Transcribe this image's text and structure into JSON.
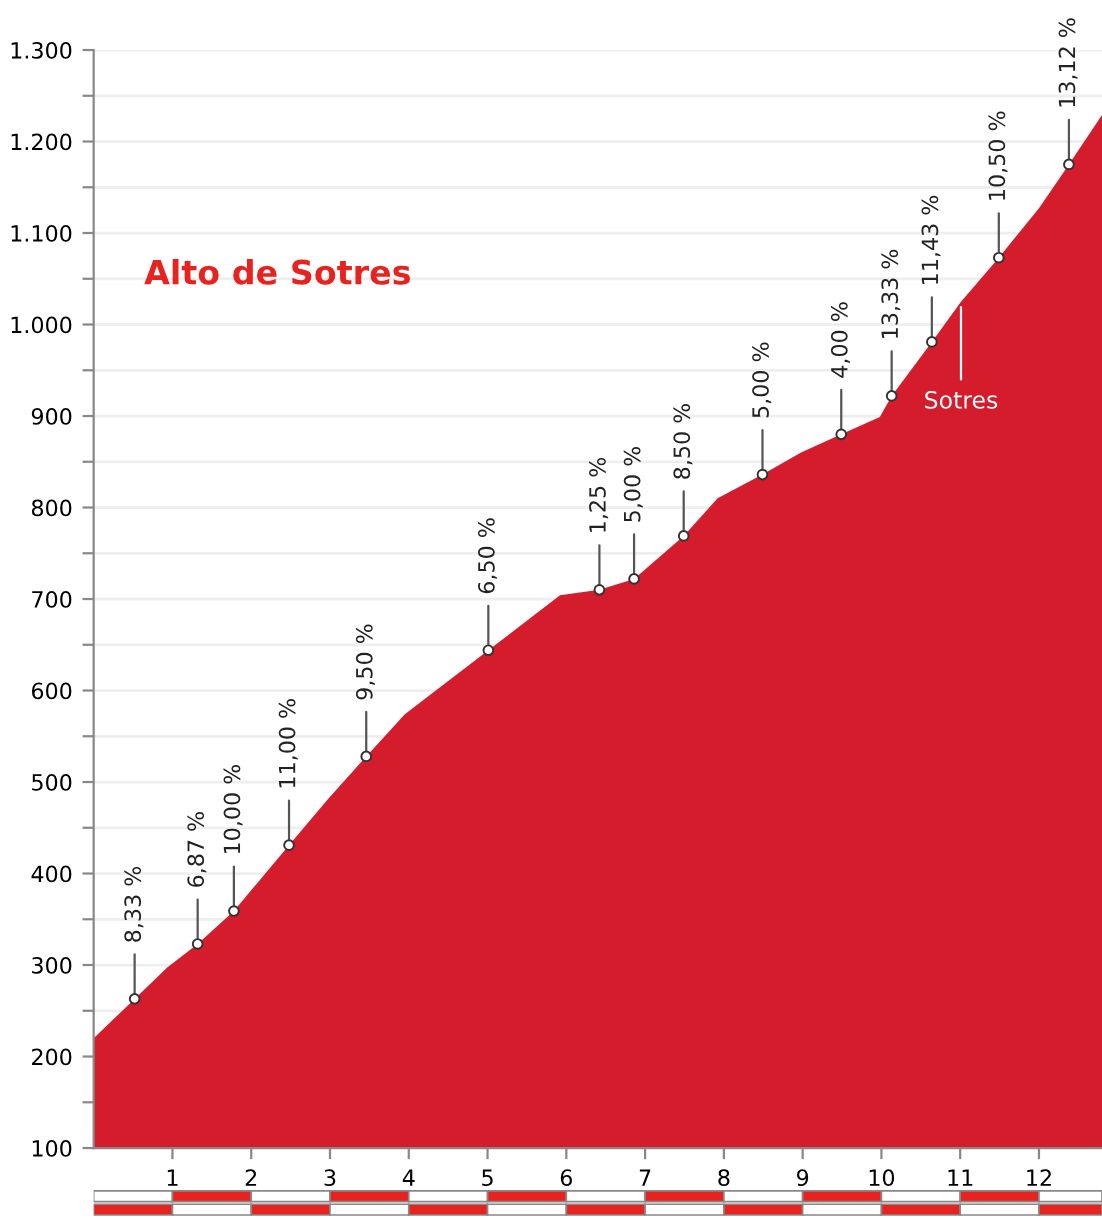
{
  "chart_data": {
    "type": "area",
    "title": "Alto de Sotres",
    "x": [
      0,
      0.52,
      0.93,
      1.32,
      1.78,
      2.48,
      2.97,
      3.46,
      3.95,
      5.01,
      5.92,
      6.42,
      6.86,
      7.49,
      7.92,
      8.49,
      8.98,
      9.49,
      9.98,
      10.13,
      10.64,
      11.01,
      11.49,
      12.0,
      12.38,
      12.8
    ],
    "series": [
      {
        "color": "#d41c2c",
        "values": [
          220,
          263,
          297,
          323,
          359,
          431,
          481,
          528,
          574,
          644,
          704,
          710,
          722,
          769,
          810,
          836,
          860,
          880,
          899,
          922,
          981,
          1025,
          1073,
          1127,
          1175,
          1229
        ]
      }
    ],
    "xlim": [
      0,
      12.8
    ],
    "xticks": [
      1,
      2,
      3,
      4,
      5,
      6,
      7,
      8,
      9,
      10,
      11,
      12
    ],
    "ylim": [
      100,
      1300
    ],
    "yticks": [
      100,
      {
        "value": 150,
        "label": null
      },
      200,
      {
        "value": 250,
        "label": null
      },
      300,
      {
        "value": 350,
        "label": null
      },
      400,
      {
        "value": 450,
        "label": null
      },
      500,
      {
        "value": 550,
        "label": null
      },
      600,
      {
        "value": 650,
        "label": null
      },
      700,
      {
        "value": 750,
        "label": null
      },
      800,
      {
        "value": 850,
        "label": null
      },
      900,
      {
        "value": 950,
        "label": null
      },
      {
        "value": 1000,
        "label": "1.000"
      },
      {
        "value": 1050,
        "label": null
      },
      {
        "value": 1100,
        "label": "1.100"
      },
      {
        "value": 1150,
        "label": null
      },
      {
        "value": 1200,
        "label": "1.200"
      },
      {
        "value": 1250,
        "label": null
      },
      {
        "value": 1300,
        "label": "1.300"
      }
    ],
    "grid": "y",
    "annotations": [
      {
        "text": "8,33 %",
        "x": 0.52,
        "y": 263
      },
      {
        "text": "6,87 %",
        "x": 1.32,
        "y": 323
      },
      {
        "text": "10,00 %",
        "x": 1.78,
        "y": 359
      },
      {
        "text": "11,00 %",
        "x": 2.48,
        "y": 431
      },
      {
        "text": "9,50 %",
        "x": 3.46,
        "y": 528
      },
      {
        "text": "6,50 %",
        "x": 5.01,
        "y": 644
      },
      {
        "text": "1,25 %",
        "x": 6.42,
        "y": 710
      },
      {
        "text": "5,00 %",
        "x": 6.86,
        "y": 722
      },
      {
        "text": "8,50 %",
        "x": 7.49,
        "y": 769
      },
      {
        "text": "5,00 %",
        "x": 8.49,
        "y": 836
      },
      {
        "text": "4,00 %",
        "x": 9.49,
        "y": 880
      },
      {
        "text": "13,33 %",
        "x": 10.13,
        "y": 922
      },
      {
        "text": "11,43 %",
        "x": 10.64,
        "y": 981
      },
      {
        "text": "10,50 %",
        "x": 11.49,
        "y": 1073
      },
      {
        "text": "13,12 %",
        "x": 12.38,
        "y": 1175
      },
      {
        "text": "Sotres",
        "x": 11.01,
        "y": 1025
      }
    ]
  }
}
